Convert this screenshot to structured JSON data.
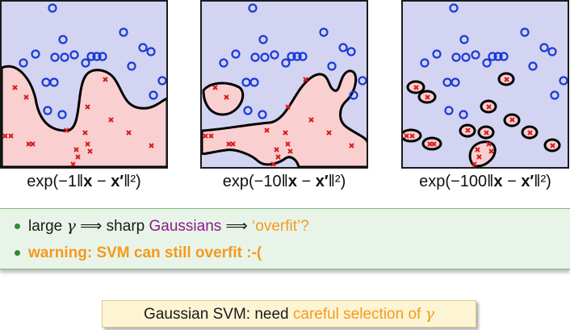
{
  "panels": [
    {
      "formula_prefix": "exp(−1‖",
      "formula_x": "x",
      "formula_minus": " − ",
      "formula_xp": "x′",
      "formula_suffix": "‖²)"
    },
    {
      "formula_prefix": "exp(−10‖",
      "formula_x": "x",
      "formula_minus": " − ",
      "formula_xp": "x′",
      "formula_suffix": "‖²)"
    },
    {
      "formula_prefix": "exp(−100‖",
      "formula_x": "x",
      "formula_minus": " − ",
      "formula_xp": "x′",
      "formula_suffix": "‖²)"
    }
  ],
  "bullet1": {
    "part1": "large ",
    "gamma": "γ",
    "part2": " ⟹ sharp ",
    "gaussians": "Gaussians",
    "part3": " ⟹ ",
    "overfit": "‘overfit’?"
  },
  "bullet2": {
    "text": "warning: SVM can still overfit :-("
  },
  "callout": {
    "part1": "Gaussian SVM: need ",
    "highlight": "careful selection of ",
    "gamma": "γ"
  },
  "colors": {
    "positive": "#1a3ad6",
    "negative": "#d91a1a",
    "pos_region": "#d3d3f2",
    "neg_region": "#f9cfd0"
  }
}
